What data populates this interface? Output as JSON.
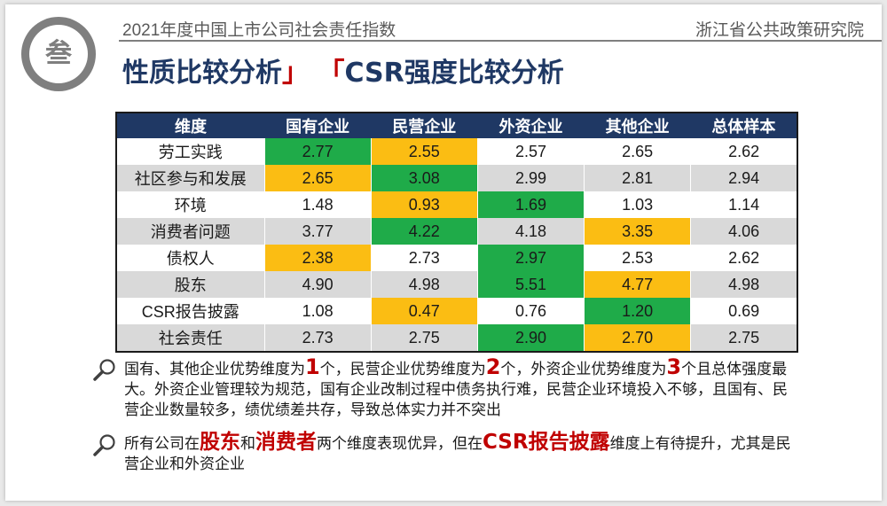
{
  "badge": {
    "char": "叁"
  },
  "header": {
    "left": "2021年度中国上市公司社会责任指数",
    "right": "浙江省公共政策研究院"
  },
  "title": {
    "part1": "性质比较分析",
    "bracket_close": "」",
    "bracket_open": "「",
    "part2": "CSR强度比较分析"
  },
  "table": {
    "headers": [
      "维度",
      "国有企业",
      "民营企业",
      "外资企业",
      "其他企业",
      "总体样本"
    ],
    "rows": [
      {
        "cells": [
          "劳工实践",
          "2.77",
          "2.55",
          "2.57",
          "2.65",
          "2.62"
        ],
        "highlight": [
          "",
          "green",
          "orange",
          "",
          "",
          ""
        ]
      },
      {
        "cells": [
          "社区参与和发展",
          "2.65",
          "3.08",
          "2.99",
          "2.81",
          "2.94"
        ],
        "highlight": [
          "",
          "orange",
          "green",
          "",
          "",
          ""
        ]
      },
      {
        "cells": [
          "环境",
          "1.48",
          "0.93",
          "1.69",
          "1.03",
          "1.14"
        ],
        "highlight": [
          "",
          "",
          "orange",
          "green",
          "",
          ""
        ]
      },
      {
        "cells": [
          "消费者问题",
          "3.77",
          "4.22",
          "4.18",
          "3.35",
          "4.06"
        ],
        "highlight": [
          "",
          "",
          "green",
          "",
          "orange",
          ""
        ]
      },
      {
        "cells": [
          "债权人",
          "2.38",
          "2.73",
          "2.97",
          "2.53",
          "2.62"
        ],
        "highlight": [
          "",
          "orange",
          "",
          "green",
          "",
          ""
        ]
      },
      {
        "cells": [
          "股东",
          "4.90",
          "4.98",
          "5.51",
          "4.77",
          "4.98"
        ],
        "highlight": [
          "",
          "",
          "",
          "green",
          "orange",
          ""
        ]
      },
      {
        "cells": [
          "CSR报告披露",
          "1.08",
          "0.47",
          "0.76",
          "1.20",
          "0.69"
        ],
        "highlight": [
          "",
          "",
          "orange",
          "",
          "green",
          ""
        ]
      },
      {
        "cells": [
          "社会责任",
          "2.73",
          "2.75",
          "2.90",
          "2.70",
          "2.75"
        ],
        "highlight": [
          "",
          "",
          "",
          "green",
          "orange",
          ""
        ]
      }
    ]
  },
  "notes": {
    "n1": {
      "a": "国有、其他企业优势维度为",
      "num1": "1",
      "b": "个，民营企业优势维度为",
      "num2": "2",
      "c": "个，外资企业优势维度为",
      "num3": "3",
      "d": "个且总体强度最大。外资企业管理较为规范，国有企业改制过程中债务执行难，民营企业环境投入不够，且国有、民营企业数量较多，绩优绩差共存，导致总体实力并不突出"
    },
    "n2": {
      "a": "所有公司在",
      "w1": "股东",
      "b": "和",
      "w2": "消费者",
      "c": "两个维度表现优异，但在",
      "w3": "CSR报告披露",
      "d": "维度上有待提升，尤其是民营企业和外资企业"
    }
  },
  "colors": {
    "header_bg": "#1f3864",
    "green": "#1fab49",
    "orange": "#fbbd13",
    "accent_red": "#c00000"
  },
  "icons": {
    "note_icon": "magnifier-icon"
  }
}
